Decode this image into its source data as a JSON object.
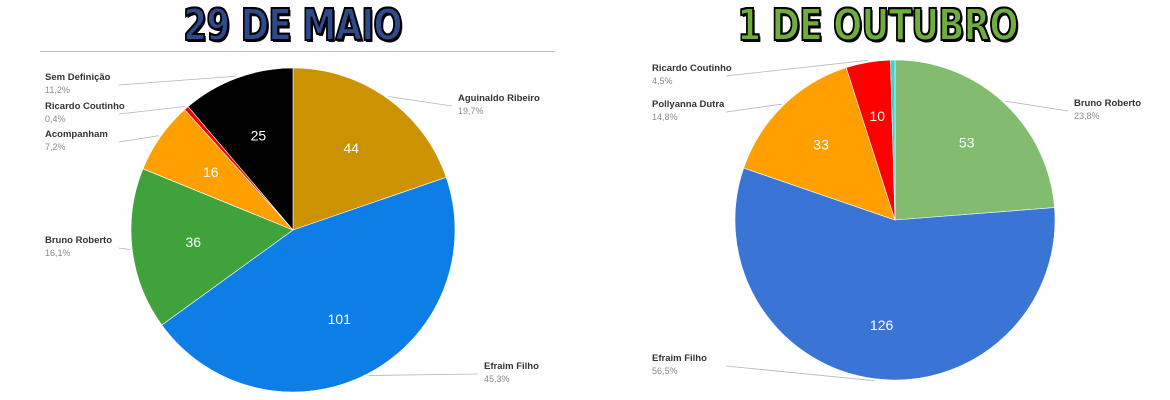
{
  "colors": {
    "left_title": "#2f4a8a",
    "right_title": "#6fae3e",
    "black": "#000000",
    "gold": "#cc9200",
    "blue_left": "#0d7ee6",
    "green_left": "#3fa23a",
    "orange": "#ff9f00",
    "red": "#ff0000",
    "green_right": "#82bd6f",
    "blue_right": "#3a75d6",
    "cyan": "#2ed6d6"
  },
  "chart_data": [
    {
      "type": "pie",
      "title": "29 DE MAIO",
      "slices": [
        {
          "name": "Aguinaldo Ribeiro",
          "value": 44,
          "percent": "19,7%",
          "color": "#cc9200"
        },
        {
          "name": "Efraim Filho",
          "value": 101,
          "percent": "45,3%",
          "color": "#0d7ee6"
        },
        {
          "name": "Bruno Roberto",
          "value": 36,
          "percent": "16,1%",
          "color": "#3fa23a"
        },
        {
          "name": "Acompanham",
          "value": 16,
          "percent": "7,2%",
          "color": "#ff9f00"
        },
        {
          "name": "Ricardo Coutinho",
          "value": 1,
          "percent": "0,4%",
          "color": "#ff0000"
        },
        {
          "name": "Sem Definição",
          "value": 25,
          "percent": "11,2%",
          "color": "#000000"
        }
      ],
      "data_labels": [
        "44",
        "101",
        "36",
        "16",
        "",
        "25"
      ]
    },
    {
      "type": "pie",
      "title": "1 DE OUTUBRO",
      "slices": [
        {
          "name": "Bruno Roberto",
          "value": 53,
          "percent": "23,8%",
          "color": "#82bd6f"
        },
        {
          "name": "Efraim Filho",
          "value": 126,
          "percent": "56,5%",
          "color": "#3a75d6"
        },
        {
          "name": "Pollyanna Dutra",
          "value": 33,
          "percent": "14,8%",
          "color": "#ff9f00"
        },
        {
          "name": "Ricardo Coutinho",
          "value": 10,
          "percent": "4,5%",
          "color": "#ff0000"
        },
        {
          "name": "",
          "value": 1,
          "percent": "",
          "color": "#2ed6d6"
        }
      ],
      "data_labels": [
        "53",
        "126",
        "33",
        "10",
        ""
      ]
    }
  ]
}
